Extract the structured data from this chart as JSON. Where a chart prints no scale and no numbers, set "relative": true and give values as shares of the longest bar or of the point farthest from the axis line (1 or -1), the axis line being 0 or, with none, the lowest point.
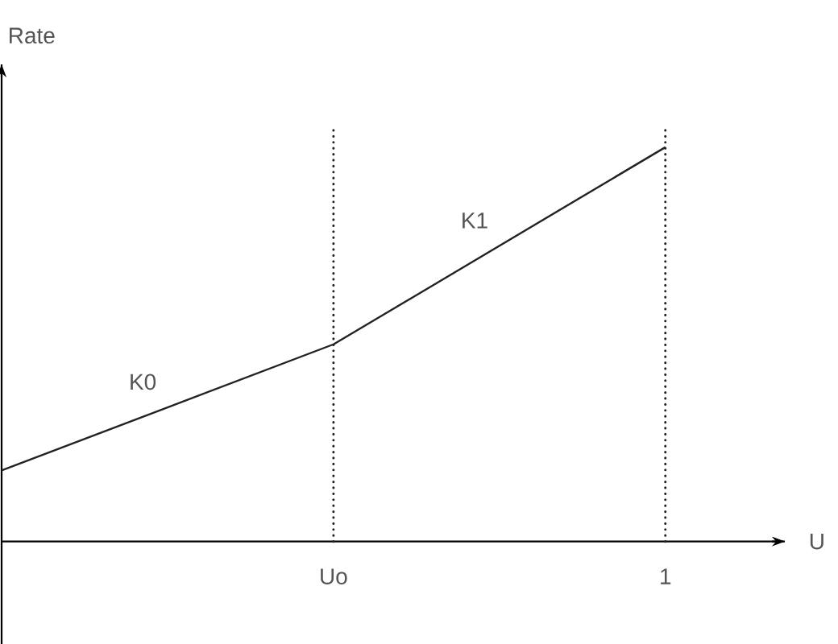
{
  "chart_data": {
    "type": "line",
    "relative": true,
    "xlabel": "U",
    "ylabel": "Rate",
    "categories": [
      null,
      "Uo",
      "1"
    ],
    "tick_labels": "x",
    "series": [
      {
        "color": "#222222",
        "values": [
          0.18,
          0.5,
          1
        ]
      }
    ],
    "ref_lines": [
      {
        "axis": "x",
        "value": "Uo",
        "line_style": "dotted",
        "color": "#222222"
      },
      {
        "axis": "x",
        "value": "1",
        "line_style": "dotted",
        "color": "#222222"
      }
    ],
    "annotations": [
      "K0",
      "K1"
    ],
    "marker": "none",
    "line_style": "solid",
    "grid": false,
    "legend": false
  }
}
